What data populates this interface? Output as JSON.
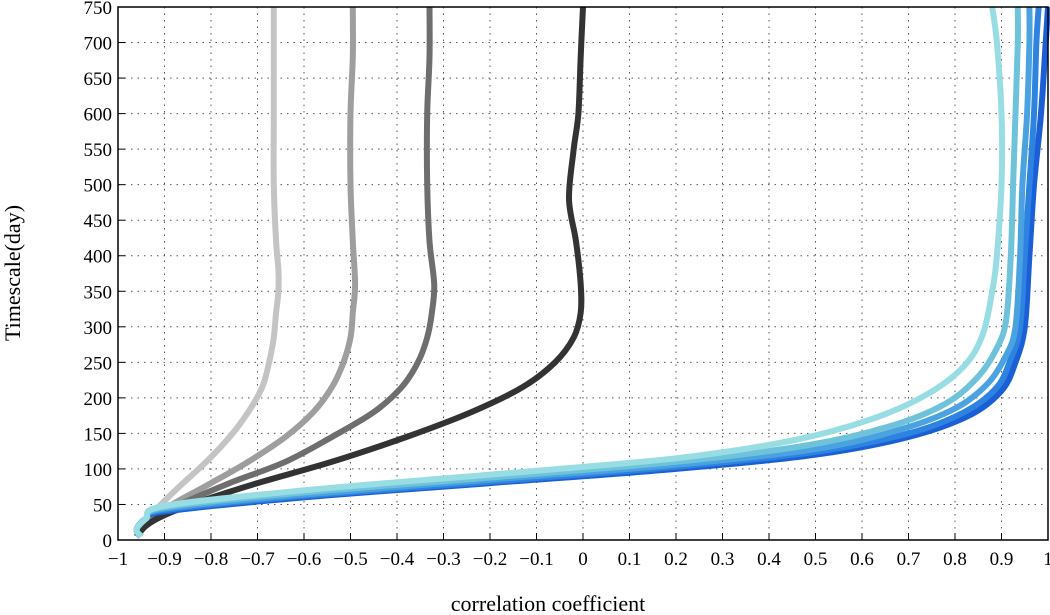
{
  "chart_data": {
    "type": "line",
    "title": "",
    "xlabel": "correlation coefficient",
    "ylabel": "Timescale(day)",
    "xlim": [
      -1,
      1
    ],
    "ylim": [
      0,
      750
    ],
    "grid": true,
    "x_ticks": [
      "−1",
      "−0.9",
      "−0.8",
      "−0.7",
      "−0.6",
      "−0.5",
      "−0.4",
      "−0.3",
      "−0.2",
      "−0.1",
      "0",
      "0.1",
      "0.2",
      "0.3",
      "0.4",
      "0.5",
      "0.6",
      "0.7",
      "0.8",
      "0.9",
      "1"
    ],
    "y_ticks": [
      "0",
      "50",
      "100",
      "150",
      "200",
      "250",
      "300",
      "350",
      "400",
      "450",
      "500",
      "550",
      "600",
      "650",
      "700",
      "750"
    ],
    "x_tick_values": [
      -1,
      -0.9,
      -0.8,
      -0.7,
      -0.6,
      -0.5,
      -0.4,
      -0.3,
      -0.2,
      -0.1,
      0,
      0.1,
      0.2,
      0.3,
      0.4,
      0.5,
      0.6,
      0.7,
      0.8,
      0.9,
      1
    ],
    "y_tick_values": [
      0,
      50,
      100,
      150,
      200,
      250,
      300,
      350,
      400,
      450,
      500,
      550,
      600,
      650,
      700,
      750
    ],
    "series": [
      {
        "color": "#c4c4c4",
        "points": [
          [
            -0.96,
            5
          ],
          [
            -0.95,
            20
          ],
          [
            -0.93,
            35
          ],
          [
            -0.9,
            55
          ],
          [
            -0.86,
            80
          ],
          [
            -0.81,
            110
          ],
          [
            -0.76,
            145
          ],
          [
            -0.72,
            180
          ],
          [
            -0.69,
            215
          ],
          [
            -0.675,
            250
          ],
          [
            -0.665,
            285
          ],
          [
            -0.66,
            320
          ],
          [
            -0.655,
            350
          ],
          [
            -0.655,
            380
          ],
          [
            -0.66,
            420
          ],
          [
            -0.665,
            500
          ],
          [
            -0.665,
            600
          ],
          [
            -0.665,
            680
          ],
          [
            -0.665,
            750
          ]
        ]
      },
      {
        "color": "#9e9e9e",
        "points": [
          [
            -0.96,
            5
          ],
          [
            -0.95,
            20
          ],
          [
            -0.92,
            35
          ],
          [
            -0.87,
            55
          ],
          [
            -0.8,
            80
          ],
          [
            -0.72,
            110
          ],
          [
            -0.64,
            145
          ],
          [
            -0.58,
            180
          ],
          [
            -0.54,
            215
          ],
          [
            -0.515,
            250
          ],
          [
            -0.5,
            285
          ],
          [
            -0.495,
            320
          ],
          [
            -0.49,
            360
          ],
          [
            -0.495,
            420
          ],
          [
            -0.5,
            500
          ],
          [
            -0.5,
            600
          ],
          [
            -0.495,
            680
          ],
          [
            -0.495,
            750
          ]
        ]
      },
      {
        "color": "#6e6e6e",
        "points": [
          [
            -0.96,
            5
          ],
          [
            -0.94,
            20
          ],
          [
            -0.91,
            35
          ],
          [
            -0.85,
            55
          ],
          [
            -0.76,
            80
          ],
          [
            -0.64,
            110
          ],
          [
            -0.54,
            145
          ],
          [
            -0.45,
            180
          ],
          [
            -0.39,
            215
          ],
          [
            -0.355,
            250
          ],
          [
            -0.335,
            285
          ],
          [
            -0.325,
            320
          ],
          [
            -0.32,
            360
          ],
          [
            -0.33,
            420
          ],
          [
            -0.335,
            500
          ],
          [
            -0.335,
            600
          ],
          [
            -0.33,
            680
          ],
          [
            -0.33,
            750
          ]
        ]
      },
      {
        "color": "#333333",
        "points": [
          [
            -0.96,
            5
          ],
          [
            -0.94,
            20
          ],
          [
            -0.9,
            35
          ],
          [
            -0.82,
            55
          ],
          [
            -0.7,
            80
          ],
          [
            -0.54,
            110
          ],
          [
            -0.38,
            145
          ],
          [
            -0.24,
            180
          ],
          [
            -0.13,
            215
          ],
          [
            -0.06,
            250
          ],
          [
            -0.02,
            285
          ],
          [
            -0.005,
            320
          ],
          [
            -0.005,
            360
          ],
          [
            -0.015,
            420
          ],
          [
            -0.03,
            480
          ],
          [
            -0.02,
            550
          ],
          [
            -0.01,
            600
          ],
          [
            -0.005,
            680
          ],
          [
            0,
            750
          ]
        ]
      },
      {
        "color": "#1a5fd6",
        "points": [
          [
            -0.95,
            5
          ],
          [
            -0.96,
            15
          ],
          [
            -0.94,
            30
          ],
          [
            -0.9,
            40
          ],
          [
            -0.6,
            60
          ],
          [
            -0.2,
            80
          ],
          [
            0.2,
            100
          ],
          [
            0.5,
            120
          ],
          [
            0.7,
            145
          ],
          [
            0.83,
            175
          ],
          [
            0.9,
            210
          ],
          [
            0.93,
            250
          ],
          [
            0.95,
            300
          ],
          [
            0.96,
            400
          ],
          [
            0.97,
            500
          ],
          [
            0.985,
            600
          ],
          [
            0.995,
            700
          ],
          [
            1.0,
            750
          ]
        ]
      },
      {
        "color": "#2e82e0",
        "points": [
          [
            -0.95,
            5
          ],
          [
            -0.96,
            15
          ],
          [
            -0.94,
            30
          ],
          [
            -0.9,
            42
          ],
          [
            -0.6,
            62
          ],
          [
            -0.2,
            82
          ],
          [
            0.2,
            103
          ],
          [
            0.5,
            124
          ],
          [
            0.7,
            150
          ],
          [
            0.82,
            180
          ],
          [
            0.89,
            215
          ],
          [
            0.92,
            255
          ],
          [
            0.94,
            300
          ],
          [
            0.95,
            400
          ],
          [
            0.96,
            500
          ],
          [
            0.97,
            600
          ],
          [
            0.975,
            700
          ],
          [
            0.98,
            750
          ]
        ]
      },
      {
        "color": "#4aa3e0",
        "points": [
          [
            -0.95,
            5
          ],
          [
            -0.96,
            15
          ],
          [
            -0.94,
            30
          ],
          [
            -0.9,
            44
          ],
          [
            -0.6,
            64
          ],
          [
            -0.2,
            85
          ],
          [
            0.2,
            106
          ],
          [
            0.5,
            128
          ],
          [
            0.68,
            155
          ],
          [
            0.8,
            185
          ],
          [
            0.87,
            220
          ],
          [
            0.91,
            260
          ],
          [
            0.93,
            300
          ],
          [
            0.94,
            400
          ],
          [
            0.945,
            500
          ],
          [
            0.955,
            600
          ],
          [
            0.96,
            700
          ],
          [
            0.96,
            750
          ]
        ]
      },
      {
        "color": "#6ec3da",
        "points": [
          [
            -0.95,
            5
          ],
          [
            -0.96,
            15
          ],
          [
            -0.94,
            30
          ],
          [
            -0.9,
            46
          ],
          [
            -0.6,
            67
          ],
          [
            -0.2,
            88
          ],
          [
            0.2,
            110
          ],
          [
            0.48,
            133
          ],
          [
            0.66,
            160
          ],
          [
            0.78,
            192
          ],
          [
            0.85,
            230
          ],
          [
            0.89,
            270
          ],
          [
            0.91,
            310
          ],
          [
            0.92,
            400
          ],
          [
            0.925,
            500
          ],
          [
            0.93,
            600
          ],
          [
            0.935,
            700
          ],
          [
            0.935,
            750
          ]
        ]
      },
      {
        "color": "#97dde3",
        "points": [
          [
            -0.95,
            5
          ],
          [
            -0.96,
            15
          ],
          [
            -0.94,
            30
          ],
          [
            -0.9,
            48
          ],
          [
            -0.6,
            70
          ],
          [
            -0.2,
            92
          ],
          [
            0.2,
            115
          ],
          [
            0.45,
            140
          ],
          [
            0.62,
            170
          ],
          [
            0.74,
            205
          ],
          [
            0.82,
            245
          ],
          [
            0.86,
            290
          ],
          [
            0.88,
            350
          ],
          [
            0.89,
            400
          ],
          [
            0.9,
            500
          ],
          [
            0.9,
            600
          ],
          [
            0.89,
            700
          ],
          [
            0.88,
            750
          ]
        ]
      }
    ]
  }
}
